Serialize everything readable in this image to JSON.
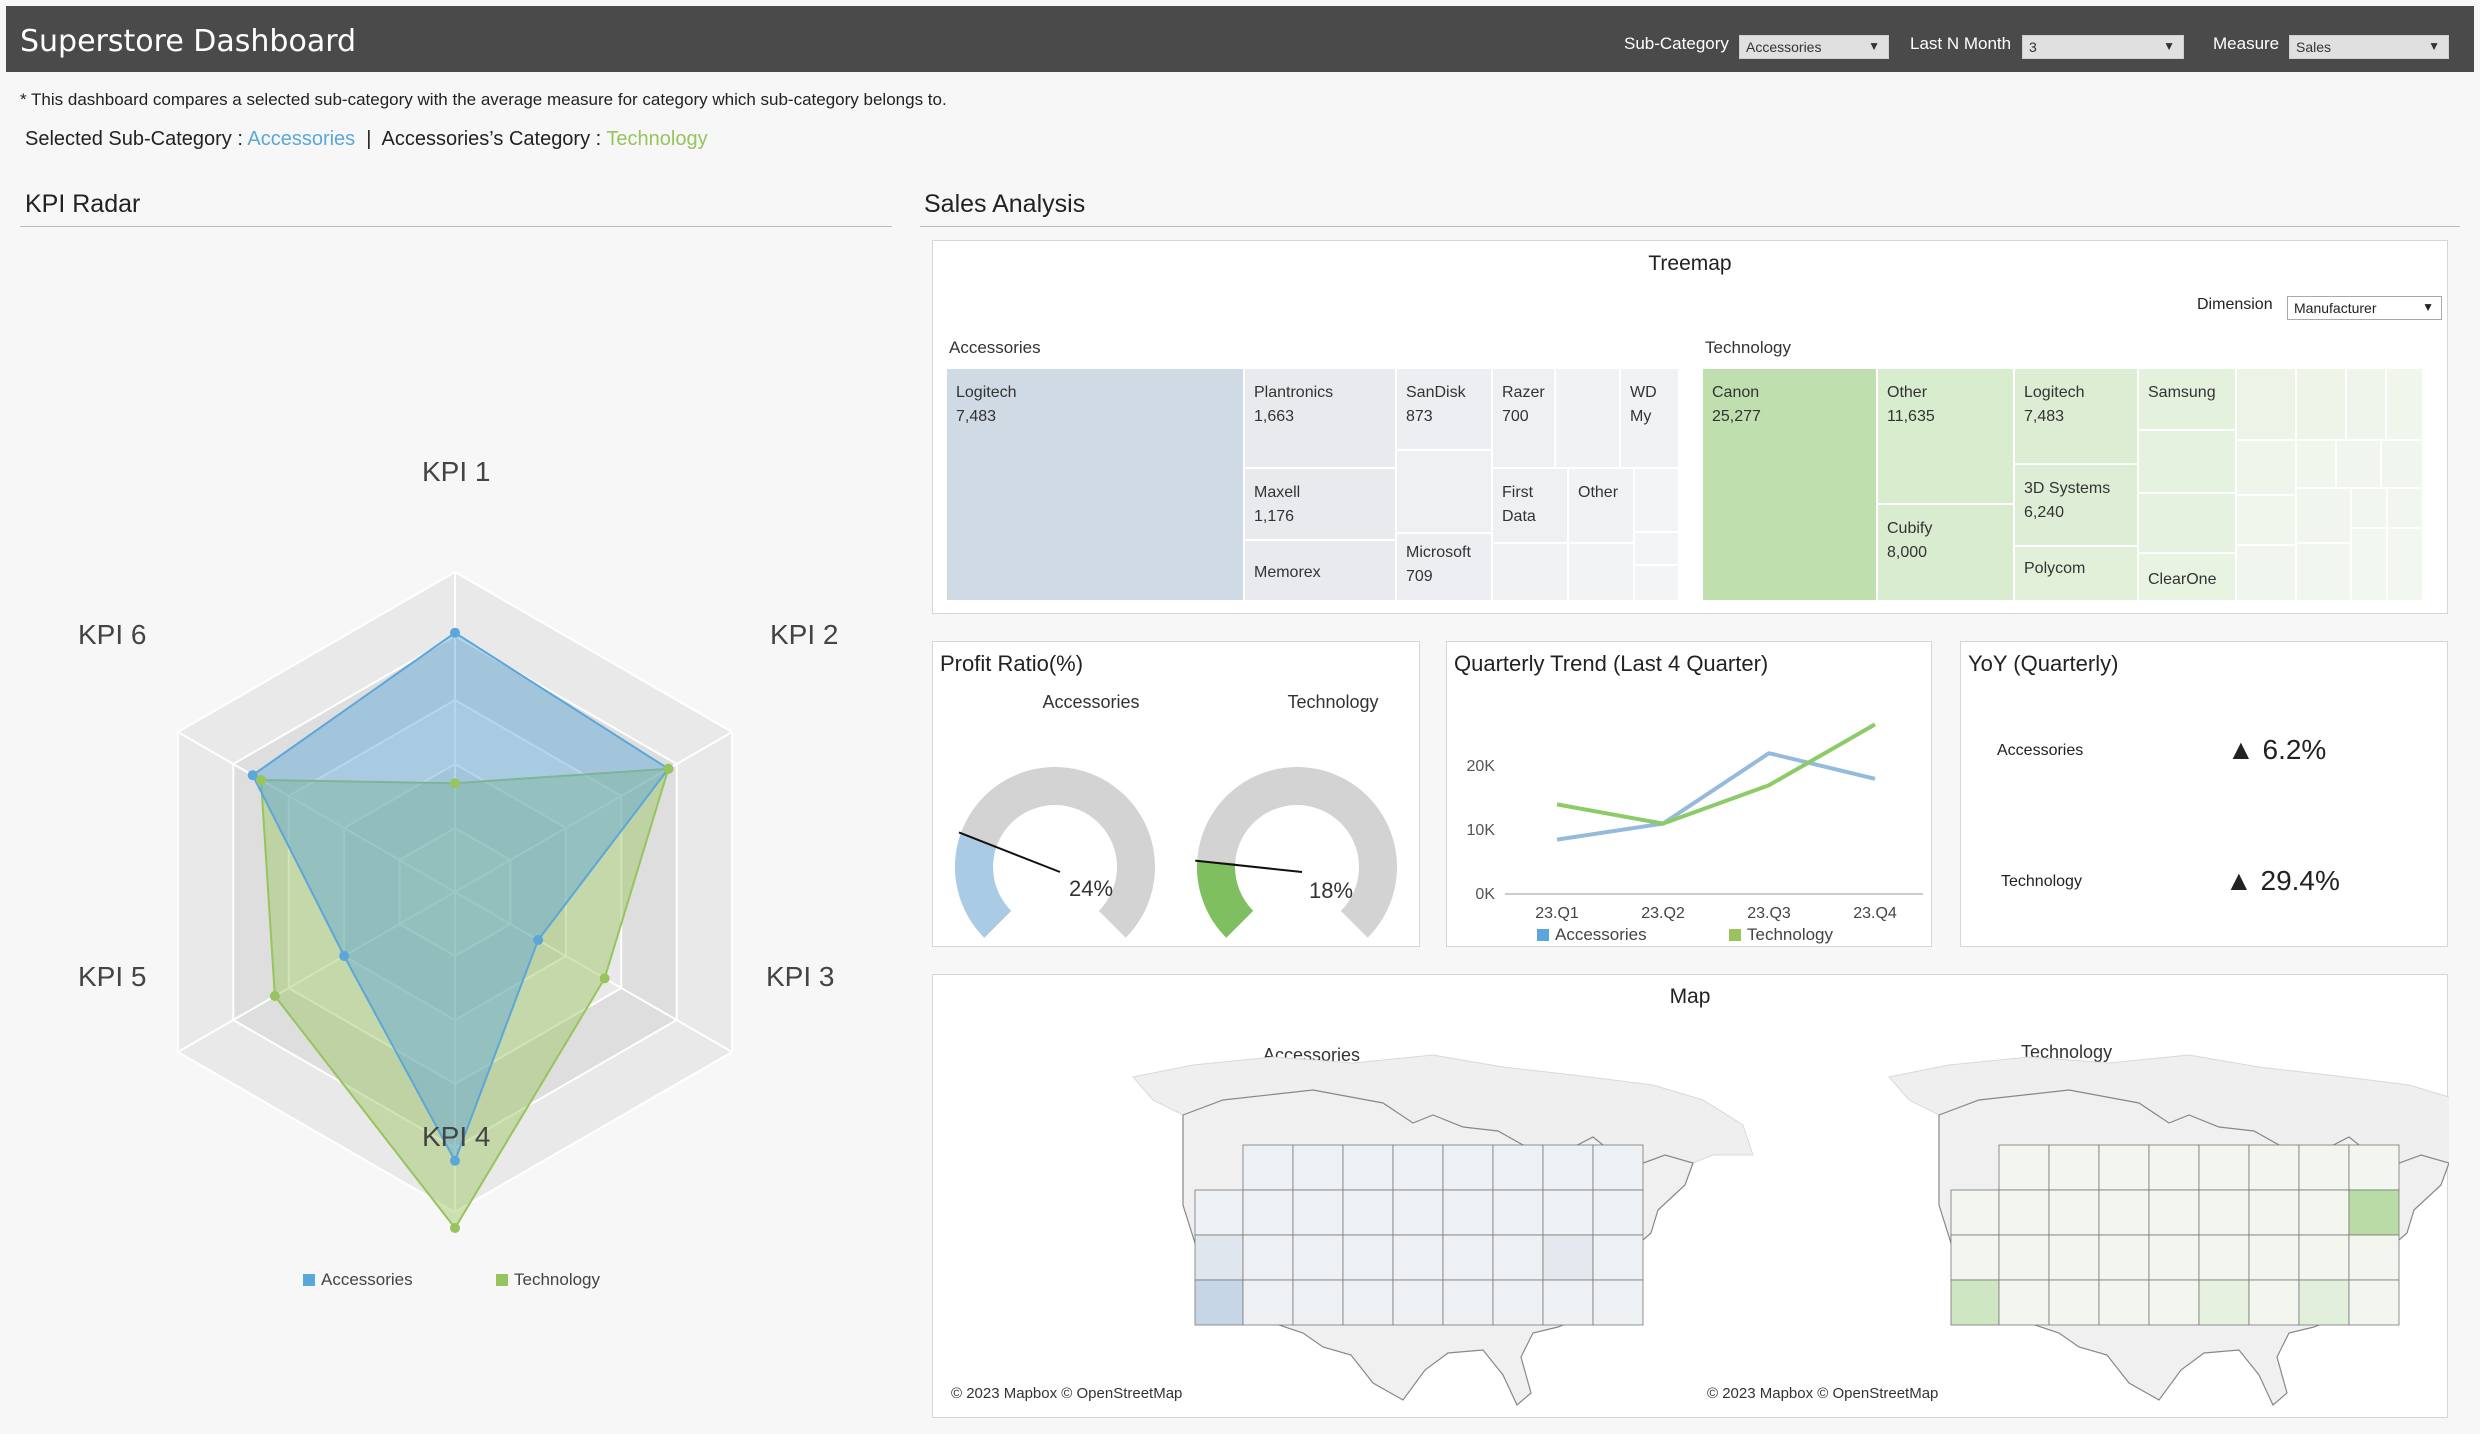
{
  "header": {
    "title": "Superstore Dashboard",
    "filters": {
      "subcategory_label": "Sub-Category",
      "subcategory_value": "Accessories",
      "lastn_label": "Last N Month",
      "lastn_value": "3",
      "measure_label": "Measure",
      "measure_value": "Sales"
    }
  },
  "note": "* This dashboard compares a selected sub-category with the average measure for category which sub-category belongs to.",
  "selection": {
    "prefix": "Selected Sub-Category : ",
    "subcategory": "Accessories",
    "separator": "  |  Accessories’s Category : ",
    "category": "Technology"
  },
  "kpi_radar": {
    "title": "KPI Radar",
    "axes": [
      "KPI 1",
      "KPI 2",
      "KPI 3",
      "KPI 4",
      "KPI 5",
      "KPI 6"
    ],
    "series": [
      {
        "name": "Accessories",
        "values": [
          0.81,
          0.77,
          0.3,
          0.84,
          0.4,
          0.73
        ],
        "color": "#5ba7d9"
      },
      {
        "name": "Technology",
        "values": [
          0.34,
          0.77,
          0.54,
          1.05,
          0.65,
          0.7
        ],
        "color": "#97c45d"
      }
    ],
    "legend": [
      "Accessories",
      "Technology"
    ]
  },
  "sales_analysis": {
    "title": "Sales Analysis",
    "treemap": {
      "title": "Treemap",
      "dimension_label": "Dimension",
      "dimension_value": "Manufacturer",
      "groups": [
        {
          "name": "Accessories",
          "items": [
            {
              "label": "Logitech",
              "value": "7,483"
            },
            {
              "label": "Plantronics",
              "value": "1,663"
            },
            {
              "label": "SanDisk",
              "value": "873"
            },
            {
              "label": "Razer",
              "value": "700"
            },
            {
              "label": "WD",
              "value": "My"
            },
            {
              "label": "Maxell",
              "value": "1,176"
            },
            {
              "label": "First",
              "value": "Data"
            },
            {
              "label": "Other",
              "value": ""
            },
            {
              "label": "Memorex",
              "value": ""
            },
            {
              "label": "Microsoft",
              "value": "709"
            }
          ]
        },
        {
          "name": "Technology",
          "items": [
            {
              "label": "Canon",
              "value": "25,277"
            },
            {
              "label": "Other",
              "value": "11,635"
            },
            {
              "label": "Logitech",
              "value": "7,483"
            },
            {
              "label": "Samsung",
              "value": ""
            },
            {
              "label": "3D Systems",
              "value": "6,240"
            },
            {
              "label": "Cubify",
              "value": "8,000"
            },
            {
              "label": "Polycom",
              "value": ""
            },
            {
              "label": "ClearOne",
              "value": ""
            }
          ]
        }
      ]
    },
    "profit_ratio": {
      "title": "Profit Ratio(%)",
      "gauges": [
        {
          "label": "Accessories",
          "value": 0.24,
          "display": "24%",
          "color": "#a9cbe6"
        },
        {
          "label": "Technology",
          "value": 0.18,
          "display": "18%",
          "color": "#7fbf5f"
        }
      ]
    },
    "quarterly_trend": {
      "title": "Quarterly Trend (Last 4 Quarter)",
      "chart_data": {
        "type": "line",
        "categories": [
          "23.Q1",
          "23.Q2",
          "23.Q3",
          "23.Q4"
        ],
        "ylim": [
          0,
          30000
        ],
        "yticks": [
          "0K",
          "10K",
          "20K"
        ],
        "series": [
          {
            "name": "Accessories",
            "values": [
              8500,
              11000,
              22000,
              18000
            ],
            "color": "#94bbdc"
          },
          {
            "name": "Technology",
            "values": [
              14000,
              11000,
              17000,
              26500
            ],
            "color": "#8ccb68"
          }
        ]
      },
      "legend": [
        "Accessories",
        "Technology"
      ]
    },
    "yoy": {
      "title": "YoY (Quarterly)",
      "rows": [
        {
          "label": "Accessories",
          "value": "▲ 6.2%"
        },
        {
          "label": "Technology",
          "value": "▲ 29.4%"
        }
      ]
    },
    "map": {
      "title": "Map",
      "left_title": "Accessories",
      "right_title": "Technology",
      "credit": "© 2023 Mapbox  © OpenStreetMap"
    }
  },
  "colors": {
    "accessories": "#5ba7d9",
    "technology": "#97c45d",
    "header_bg": "#4a4a4a"
  }
}
